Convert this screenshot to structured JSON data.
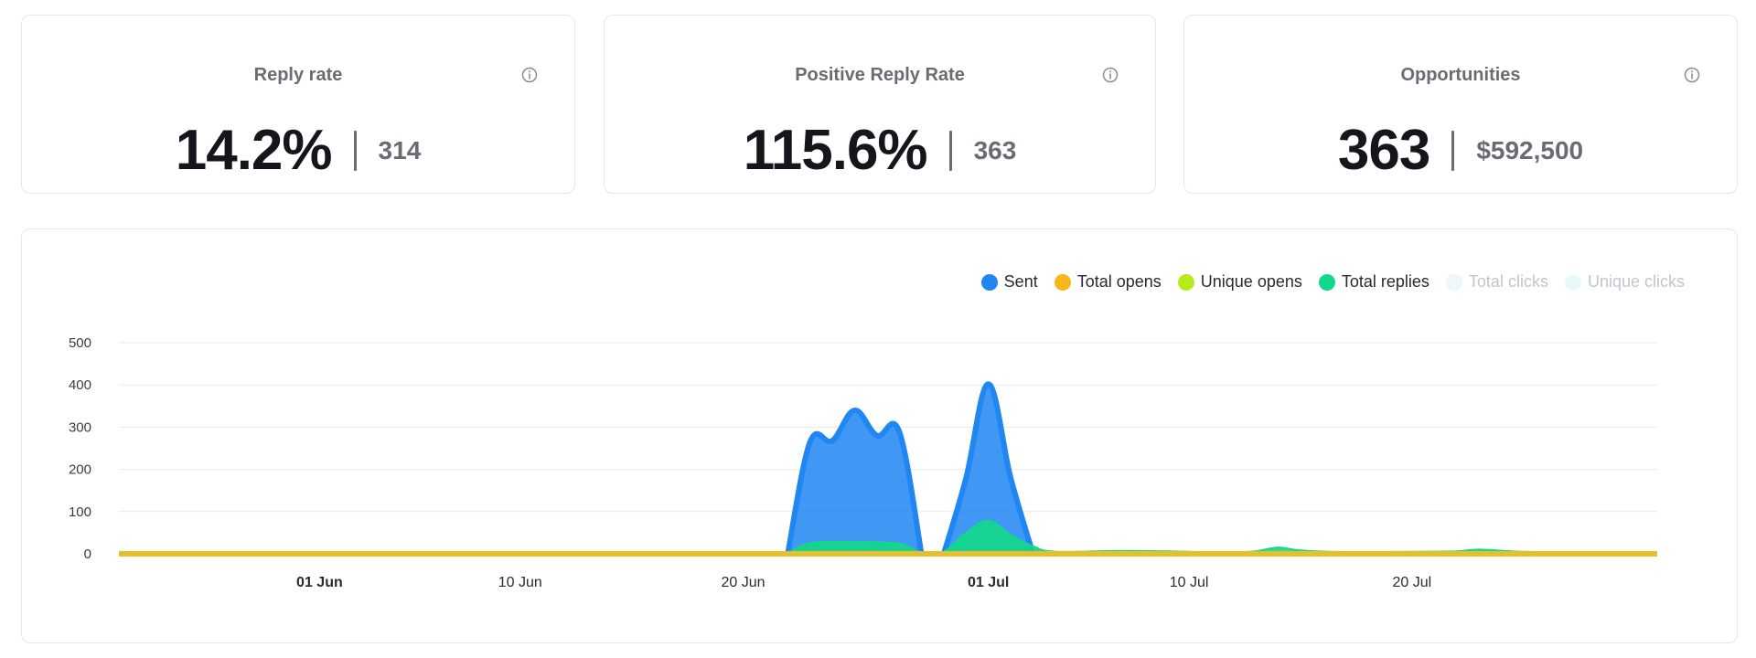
{
  "cards": [
    {
      "title": "Reply rate",
      "value": "14.2%",
      "sub": "314"
    },
    {
      "title": "Positive Reply Rate",
      "value": "115.6%",
      "sub": "363"
    },
    {
      "title": "Opportunities",
      "value": "363",
      "sub": "$592,500"
    }
  ],
  "colors": {
    "sent": "#1f86f2",
    "total_opens": "#f7b716",
    "unique_opens": "#b6ec1a",
    "total_replies": "#12d98a",
    "total_clicks": "#eef7fb",
    "unique_clicks": "#e7f9fb",
    "baseline": "#e6c02a"
  },
  "legend": [
    {
      "label": "Sent",
      "color": "#1f86f2",
      "active": true
    },
    {
      "label": "Total opens",
      "color": "#f7b716",
      "active": true
    },
    {
      "label": "Unique opens",
      "color": "#b6ec1a",
      "active": true
    },
    {
      "label": "Total replies",
      "color": "#12d98a",
      "active": true
    },
    {
      "label": "Total clicks",
      "color": "#eef7fb",
      "active": false
    },
    {
      "label": "Unique clicks",
      "color": "#e7f9fb",
      "active": false
    }
  ],
  "chart_data": {
    "type": "area",
    "y_ticks": [
      0,
      100,
      200,
      300,
      400,
      500
    ],
    "ylim": [
      0,
      500
    ],
    "x_start": "2024-05-23",
    "x_end": "2024-07-31",
    "x_ticks": [
      {
        "date": "2024-06-01",
        "label": "01 Jun",
        "bold": true
      },
      {
        "date": "2024-06-10",
        "label": "10 Jun",
        "bold": false
      },
      {
        "date": "2024-06-20",
        "label": "20 Jun",
        "bold": false
      },
      {
        "date": "2024-07-01",
        "label": "01 Jul",
        "bold": true
      },
      {
        "date": "2024-07-10",
        "label": "10 Jul",
        "bold": false
      },
      {
        "date": "2024-07-20",
        "label": "20 Jul",
        "bold": false
      }
    ],
    "series": [
      {
        "name": "Sent",
        "points": [
          [
            "2024-06-22",
            0
          ],
          [
            "2024-06-23",
            265
          ],
          [
            "2024-06-24",
            268
          ],
          [
            "2024-06-25",
            340
          ],
          [
            "2024-06-26",
            280
          ],
          [
            "2024-06-27",
            290
          ],
          [
            "2024-06-28",
            0
          ],
          [
            "2024-06-29",
            0
          ],
          [
            "2024-06-30",
            180
          ],
          [
            "2024-07-01",
            402
          ],
          [
            "2024-07-02",
            180
          ],
          [
            "2024-07-03",
            0
          ]
        ]
      },
      {
        "name": "Total replies",
        "points": [
          [
            "2024-06-22",
            0
          ],
          [
            "2024-06-23",
            25
          ],
          [
            "2024-06-25",
            28
          ],
          [
            "2024-06-27",
            24
          ],
          [
            "2024-06-28",
            2
          ],
          [
            "2024-06-29",
            5
          ],
          [
            "2024-06-30",
            50
          ],
          [
            "2024-07-01",
            78
          ],
          [
            "2024-07-02",
            45
          ],
          [
            "2024-07-03",
            18
          ],
          [
            "2024-07-04",
            5
          ],
          [
            "2024-07-07",
            7
          ],
          [
            "2024-07-10",
            5
          ],
          [
            "2024-07-12",
            3
          ],
          [
            "2024-07-13",
            6
          ],
          [
            "2024-07-14",
            15
          ],
          [
            "2024-07-15",
            8
          ],
          [
            "2024-07-17",
            4
          ],
          [
            "2024-07-20",
            5
          ],
          [
            "2024-07-22",
            6
          ],
          [
            "2024-07-23",
            10
          ],
          [
            "2024-07-25",
            5
          ],
          [
            "2024-07-28",
            3
          ],
          [
            "2024-07-31",
            4
          ]
        ]
      },
      {
        "name": "Total opens",
        "points": [
          [
            "2024-05-23",
            0
          ],
          [
            "2024-07-31",
            0
          ]
        ]
      }
    ]
  }
}
